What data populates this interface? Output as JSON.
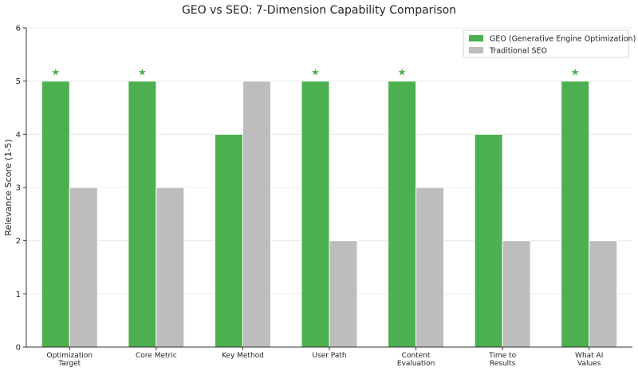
{
  "chart_data": {
    "type": "bar",
    "title": "GEO vs SEO: 7-Dimension Capability Comparison",
    "xlabel": "",
    "ylabel": "Relevance Score (1-5)",
    "ylim": [
      0,
      6
    ],
    "yticks": [
      0,
      1,
      2,
      3,
      4,
      5,
      6
    ],
    "grid": "horizontal",
    "legend_position": "top-right",
    "categories": [
      [
        "Optimization",
        "Target"
      ],
      [
        "Core Metric"
      ],
      [
        "Key Method"
      ],
      [
        "User Path"
      ],
      [
        "Content",
        "Evaluation"
      ],
      [
        "Time to",
        "Results"
      ],
      [
        "What AI",
        "Values"
      ]
    ],
    "series": [
      {
        "name": "GEO (Generative Engine Optimization)",
        "color": "#4caf50",
        "values": [
          5,
          5,
          4,
          5,
          5,
          4,
          5
        ]
      },
      {
        "name": "Traditional SEO",
        "color": "#bdbdbd",
        "values": [
          3,
          3,
          5,
          2,
          3,
          2,
          2
        ]
      }
    ],
    "star_marker": "★",
    "star_color": "#4caf50",
    "starred_categories": [
      0,
      1,
      3,
      4,
      6
    ]
  }
}
